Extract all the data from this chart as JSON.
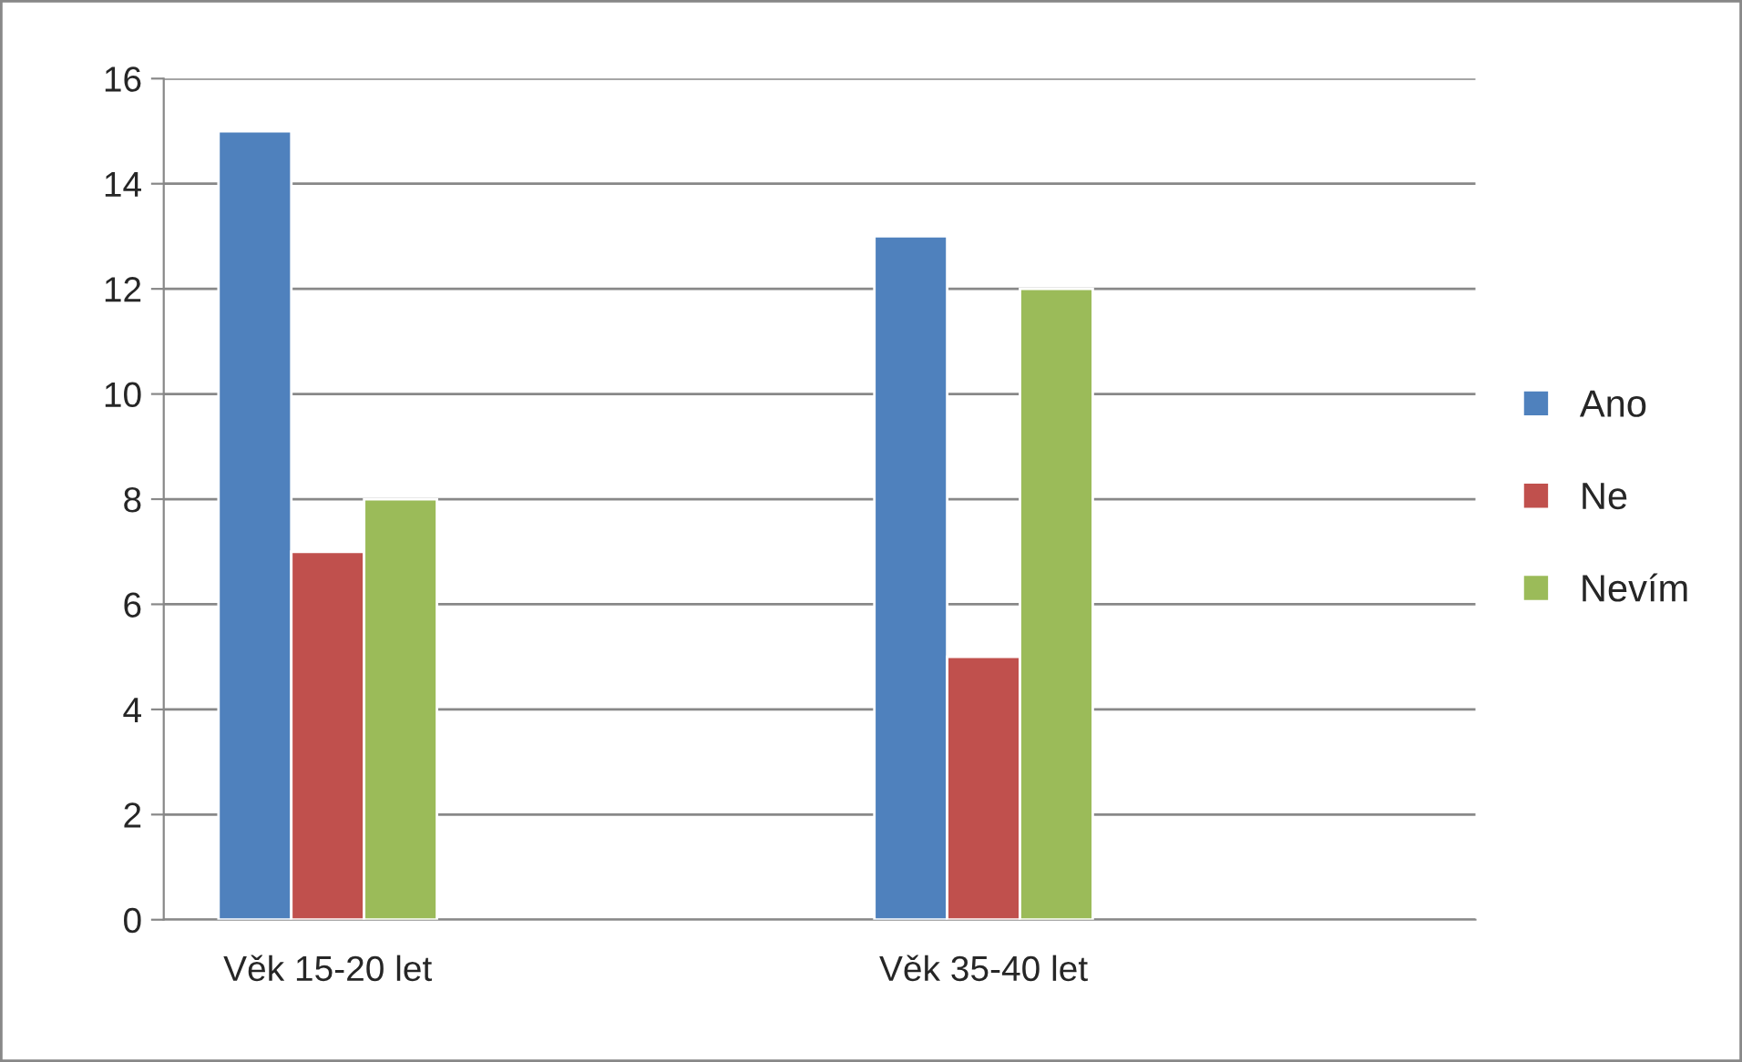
{
  "chart_data": {
    "type": "bar",
    "categories": [
      "Věk 15-20 let",
      null,
      "Věk 35-40 let",
      null
    ],
    "series": [
      {
        "name": "Ano",
        "color": "#4f81bd",
        "values": [
          15,
          null,
          13,
          null
        ]
      },
      {
        "name": "Ne",
        "color": "#c0504d",
        "values": [
          7,
          null,
          5,
          null
        ]
      },
      {
        "name": "Nevím",
        "color": "#9bbb59",
        "values": [
          8,
          null,
          12,
          null
        ]
      }
    ],
    "ylim": [
      0,
      16
    ],
    "yticks": [
      0,
      2,
      4,
      6,
      8,
      10,
      12,
      14,
      16
    ],
    "grid": "y",
    "legend": "right"
  }
}
